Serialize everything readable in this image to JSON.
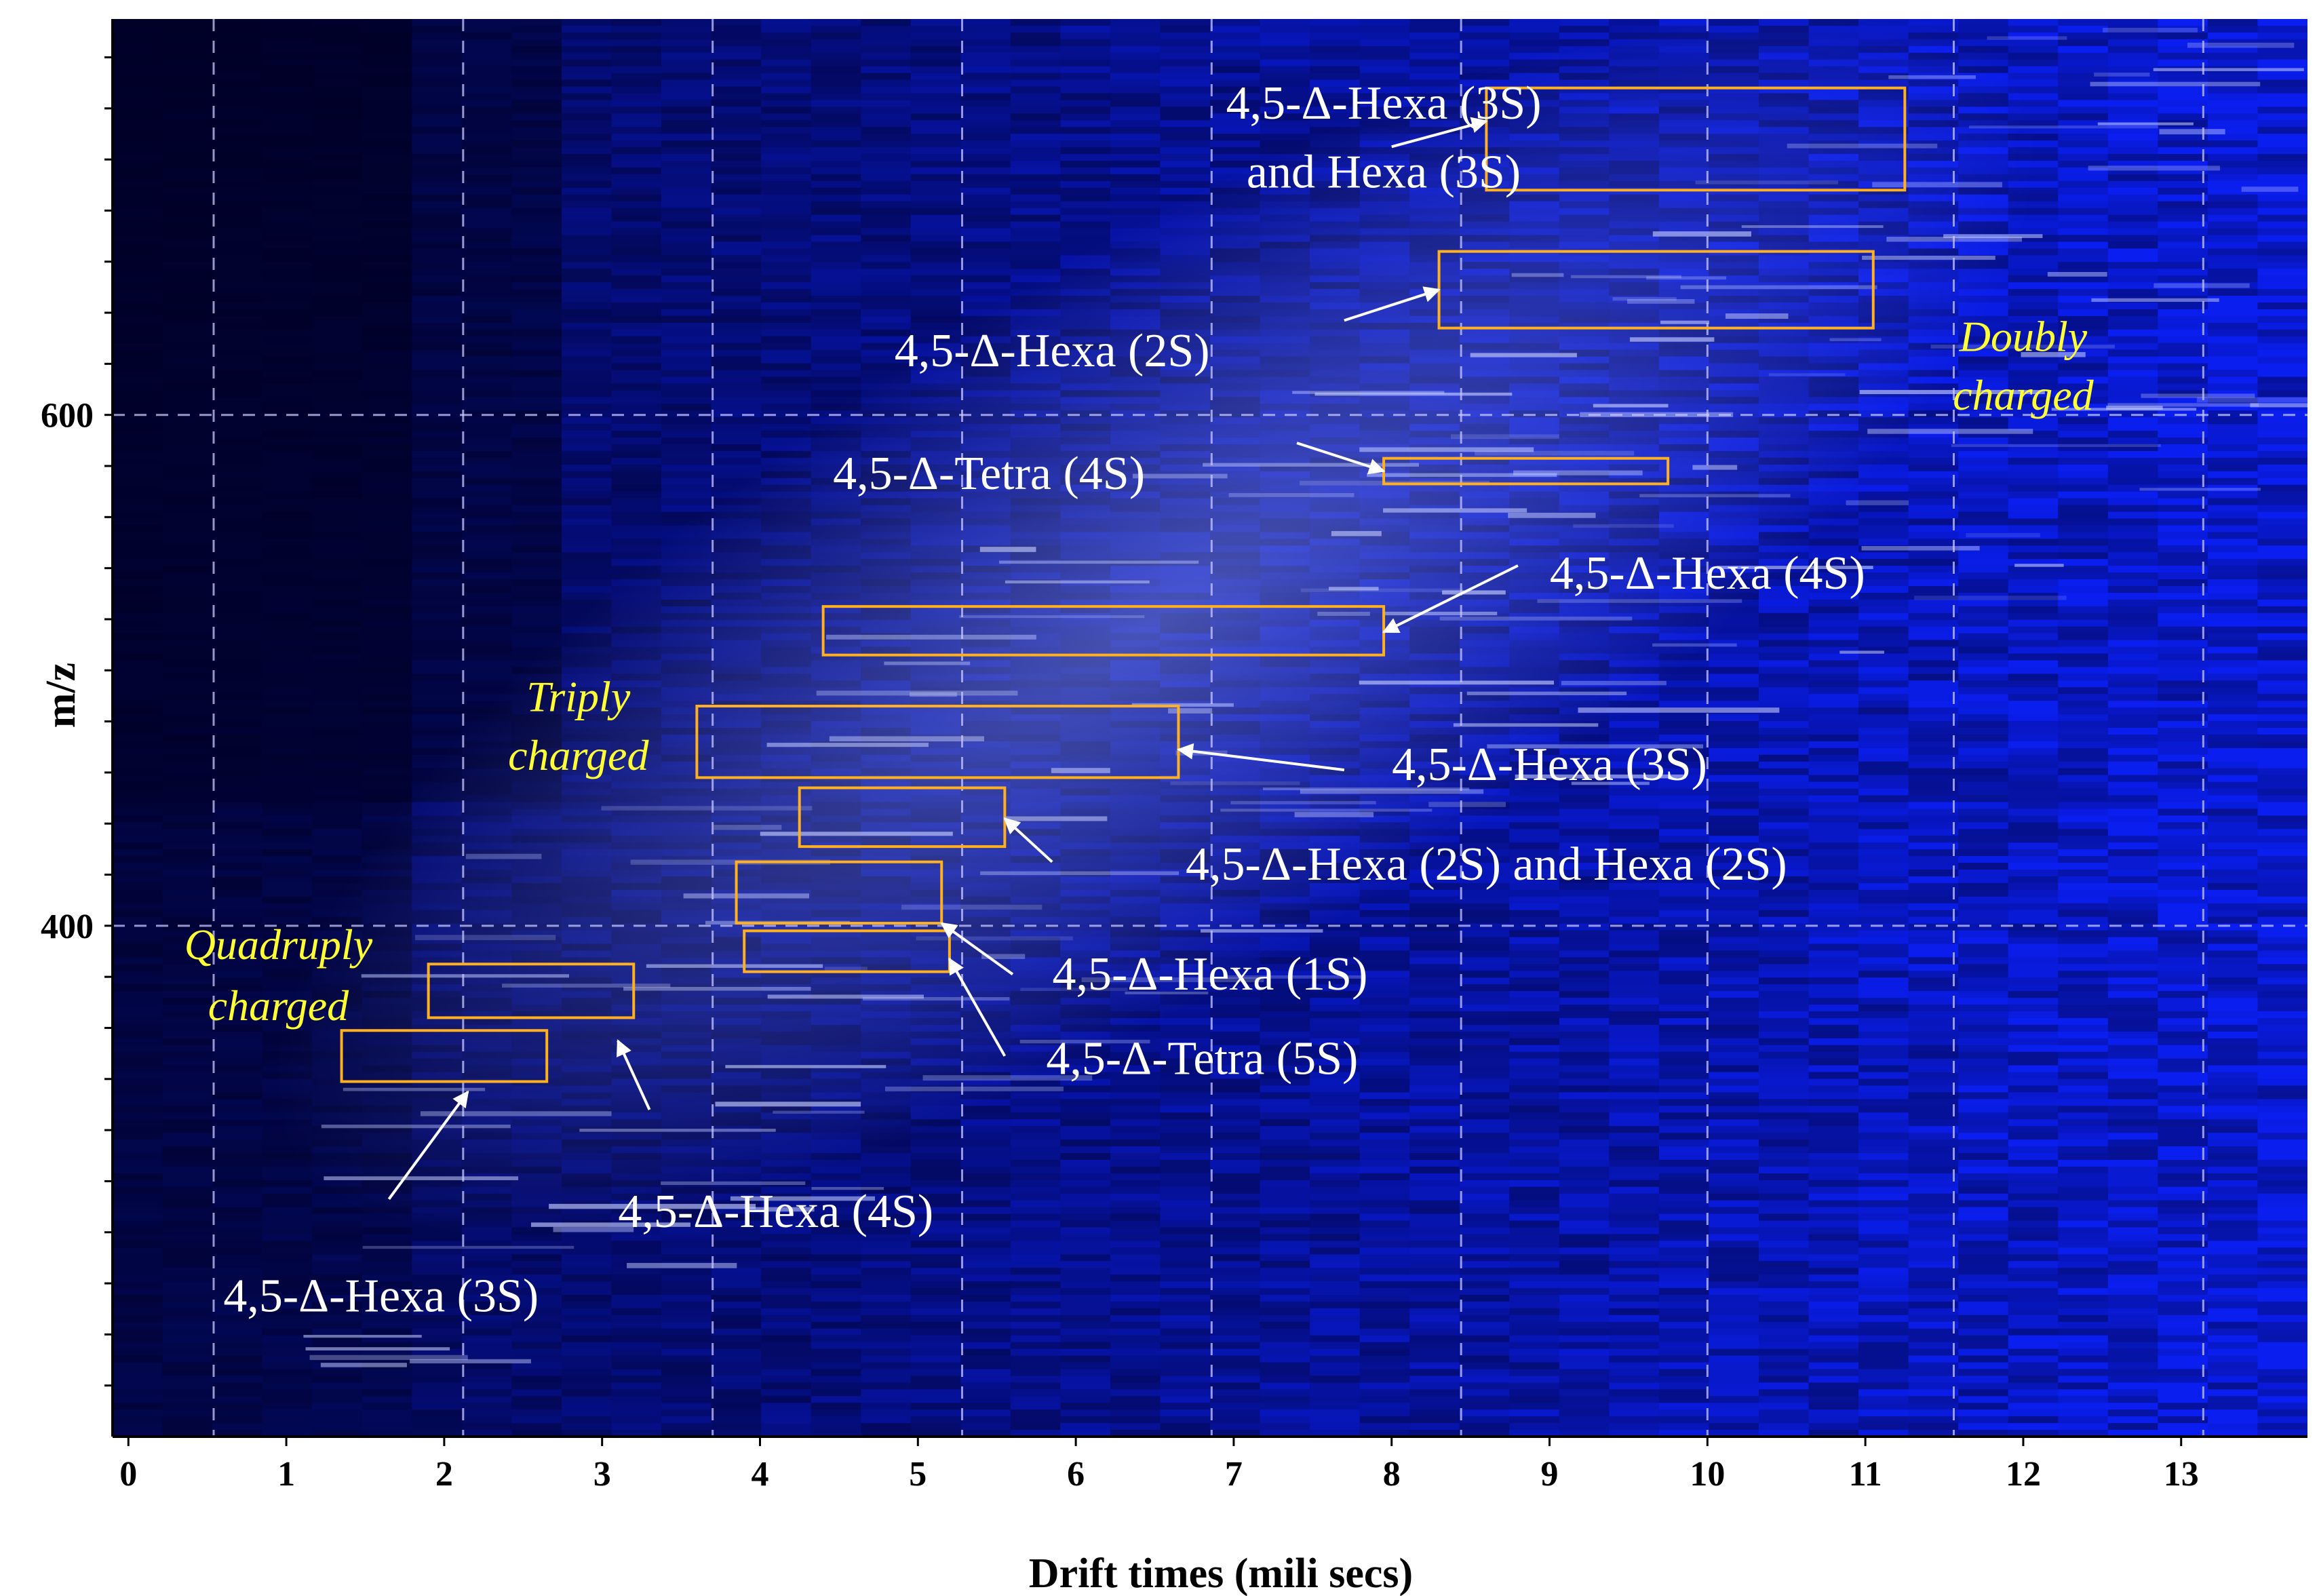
{
  "chart_data": {
    "type": "heatmap",
    "title": "",
    "xlabel": "Drift times (mili secs)",
    "ylabel": "m/z",
    "xlim": [
      -0.1,
      13.8
    ],
    "ylim": [
      200,
      755
    ],
    "x_ticks": [
      "0",
      "1",
      "2",
      "3",
      "4",
      "5",
      "6",
      "7",
      "8",
      "9",
      "10",
      "11",
      "12",
      "13"
    ],
    "x_tick_values": [
      0,
      1,
      2,
      3,
      4,
      5,
      6,
      7,
      8,
      9,
      10,
      11,
      12,
      13
    ],
    "y_ticks": [
      "400",
      "600"
    ],
    "y_tick_values": [
      400,
      600
    ],
    "x_grid": [
      0.54,
      2.12,
      3.7,
      5.28,
      6.86,
      8.44,
      10.0,
      11.56,
      13.14
    ],
    "y_grid": [
      400,
      600
    ],
    "colors": {
      "background": "#0a14c8",
      "low": "#000008",
      "mid": "#1030e8",
      "high": "#d8d8ff",
      "box": "#ffb020",
      "label": "#ffffff",
      "charge": "#ffff33"
    },
    "boxes": [
      {
        "name": "hexa3s-hexa3s-high",
        "t": [
          8.6,
          11.25
        ],
        "mz": [
          688,
          728
        ]
      },
      {
        "name": "hexa2s-high",
        "t": [
          8.3,
          11.05
        ],
        "mz": [
          634,
          664
        ]
      },
      {
        "name": "tetra4s-high",
        "t": [
          7.95,
          9.75
        ],
        "mz": [
          573,
          583
        ]
      },
      {
        "name": "hexa4s-mid",
        "t": [
          4.4,
          7.95
        ],
        "mz": [
          506,
          525
        ]
      },
      {
        "name": "hexa3s-mid",
        "t": [
          3.6,
          6.65
        ],
        "mz": [
          458,
          486
        ]
      },
      {
        "name": "hexa2s-hexa2s-mid",
        "t": [
          4.25,
          5.55
        ],
        "mz": [
          431,
          454
        ]
      },
      {
        "name": "hexa1s-mid",
        "t": [
          3.85,
          5.15
        ],
        "mz": [
          401,
          425
        ]
      },
      {
        "name": "tetra5s-mid",
        "t": [
          3.9,
          5.2
        ],
        "mz": [
          382,
          398
        ]
      },
      {
        "name": "hexa4s-low",
        "t": [
          1.9,
          3.2
        ],
        "mz": [
          364,
          385
        ]
      },
      {
        "name": "hexa3s-low",
        "t": [
          1.35,
          2.65
        ],
        "mz": [
          339,
          359
        ]
      }
    ],
    "annotations": [
      {
        "text": "4,5-Δ-Hexa (3S)",
        "t": 7.95,
        "mz": 716,
        "anchor": "middle",
        "arrow": {
          "from": [
            8.0,
            705
          ],
          "to": [
            8.6,
            715
          ]
        }
      },
      {
        "text": "and Hexa (3S)",
        "t": 7.95,
        "mz": 689,
        "anchor": "middle"
      },
      {
        "text": "4,5-Δ-Hexa (2S)",
        "t": 5.85,
        "mz": 619,
        "anchor": "middle",
        "arrow": {
          "from": [
            7.7,
            637
          ],
          "to": [
            8.3,
            649
          ]
        }
      },
      {
        "text": "4,5-Δ-Tetra (4S)",
        "t": 5.45,
        "mz": 571,
        "anchor": "middle",
        "arrow": {
          "from": [
            7.4,
            589
          ],
          "to": [
            7.95,
            578
          ]
        }
      },
      {
        "text": "4,5-Δ-Hexa (4S)",
        "t": 10.0,
        "mz": 532,
        "anchor": "middle",
        "arrow": {
          "from": [
            8.8,
            541
          ],
          "to": [
            7.95,
            515
          ]
        }
      },
      {
        "text": "4,5-Δ-Hexa (3S)",
        "t": 9.0,
        "mz": 457,
        "anchor": "middle",
        "arrow": {
          "from": [
            7.7,
            461
          ],
          "to": [
            6.65,
            469
          ]
        }
      },
      {
        "text": "4,5-Δ-Hexa (2S)  and Hexa (2S)",
        "t": 8.6,
        "mz": 418,
        "anchor": "middle",
        "arrow": {
          "from": [
            5.85,
            425
          ],
          "to": [
            5.55,
            442
          ]
        }
      },
      {
        "text": "4,5-Δ-Hexa (1S)",
        "t": 6.85,
        "mz": 375,
        "anchor": "middle",
        "arrow": {
          "from": [
            5.6,
            381
          ],
          "to": [
            5.15,
            401
          ]
        }
      },
      {
        "text": "4,5-Δ-Tetra (5S)",
        "t": 6.8,
        "mz": 342,
        "anchor": "middle",
        "arrow": {
          "from": [
            5.55,
            349
          ],
          "to": [
            5.2,
            387
          ]
        }
      },
      {
        "text": "4,5-Δ-Hexa (4S)",
        "t": 4.1,
        "mz": 282,
        "anchor": "middle",
        "arrow": {
          "from": [
            3.3,
            328
          ],
          "to": [
            3.1,
            355
          ]
        }
      },
      {
        "text": "4,5-Δ-Hexa (3S)",
        "t": 1.6,
        "mz": 249,
        "anchor": "middle",
        "arrow": {
          "from": [
            1.65,
            293
          ],
          "to": [
            2.15,
            335
          ]
        }
      }
    ],
    "charge_labels": [
      {
        "lines": [
          "Doubly",
          "charged"
        ],
        "t": 12.0,
        "mz": [
          625,
          602
        ]
      },
      {
        "lines": [
          "Triply",
          "charged"
        ],
        "t": 2.85,
        "mz": [
          484,
          461
        ]
      },
      {
        "lines": [
          "Quadruply",
          "charged"
        ],
        "t": 0.95,
        "mz": [
          387,
          363
        ]
      }
    ]
  }
}
